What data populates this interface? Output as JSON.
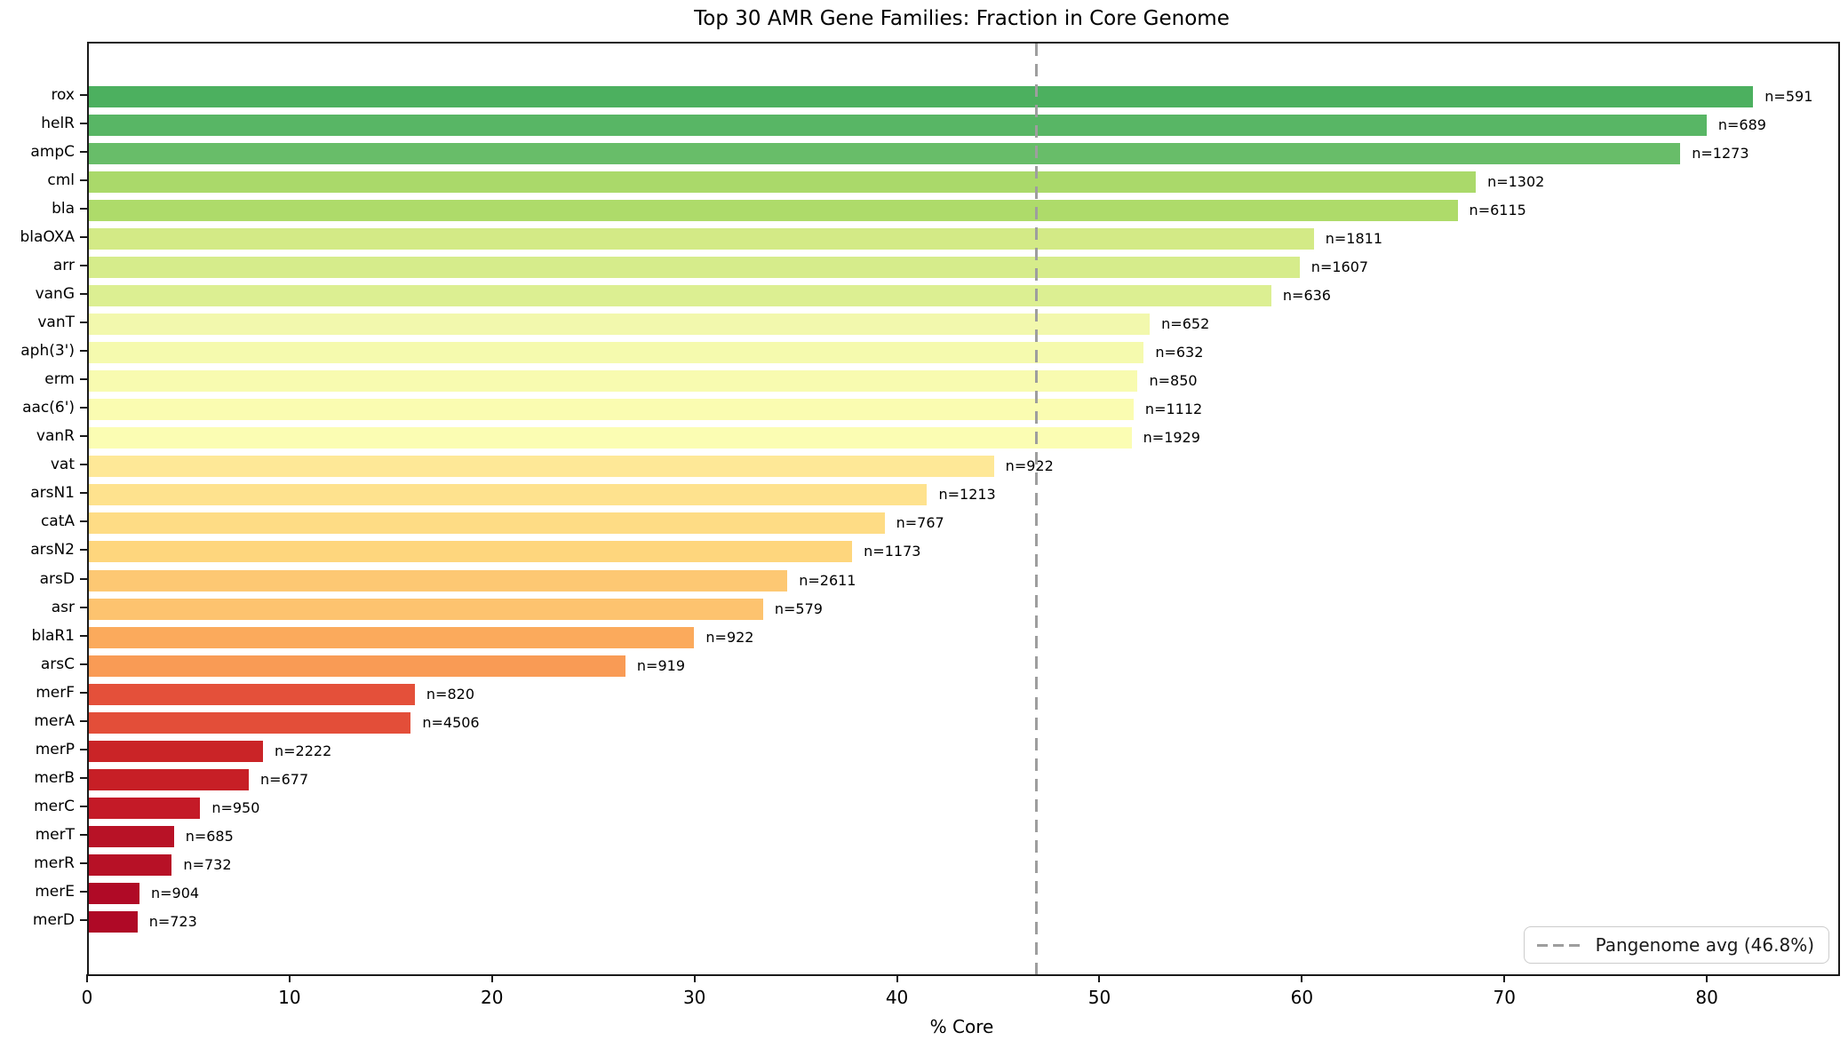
{
  "figure": {
    "title": "Top 30 AMR Gene Families: Fraction in Core Genome",
    "xlabel": "% Core"
  },
  "legend": {
    "label": "Pangenome avg (46.8%)",
    "position": "lower right",
    "line_style": "dashed",
    "line_color": "#9e9e9e"
  },
  "chart_data": {
    "type": "bar",
    "orientation": "horizontal",
    "title": "Top 30 AMR Gene Families: Fraction in Core Genome",
    "xlabel": "% Core",
    "ylabel": "",
    "categories": [
      "rox",
      "helR",
      "ampC",
      "cml",
      "bla",
      "blaOXA",
      "arr",
      "vanG",
      "vanT",
      "aph(3')",
      "erm",
      "aac(6')",
      "vanR",
      "vat",
      "arsN1",
      "catA",
      "arsN2",
      "arsD",
      "asr",
      "blaR1",
      "arsC",
      "merF",
      "merA",
      "merP",
      "merB",
      "merC",
      "merT",
      "merR",
      "merE",
      "merD"
    ],
    "values": [
      82.2,
      79.9,
      78.6,
      68.5,
      67.6,
      60.5,
      59.8,
      58.4,
      52.4,
      52.1,
      51.8,
      51.6,
      51.5,
      44.7,
      41.4,
      39.3,
      37.7,
      34.5,
      33.3,
      29.9,
      26.5,
      16.1,
      15.9,
      8.6,
      7.9,
      5.5,
      4.2,
      4.1,
      2.5,
      2.4
    ],
    "counts": [
      591,
      689,
      1273,
      1302,
      6115,
      1811,
      1607,
      636,
      652,
      632,
      850,
      1112,
      1929,
      922,
      1213,
      767,
      1173,
      2611,
      579,
      922,
      919,
      820,
      4506,
      2222,
      677,
      950,
      685,
      732,
      904,
      723
    ],
    "count_label_prefix": "n=",
    "bar_colors": [
      "#4cb05f",
      "#58b665",
      "#68bd69",
      "#aad96a",
      "#aedb6a",
      "#d3ea86",
      "#d6ec8b",
      "#dcef92",
      "#f2f8ad",
      "#f5faae",
      "#f8fbb0",
      "#fafcb1",
      "#fbfdb3",
      "#fee897",
      "#fee28e",
      "#fedc85",
      "#fed67d",
      "#fdc873",
      "#fdc36f",
      "#fbaa5c",
      "#f99b55",
      "#e4503a",
      "#e34e39",
      "#ca2427",
      "#c71f26",
      "#c41a27",
      "#b81226",
      "#b71126",
      "#b00a26",
      "#af0926"
    ],
    "colormap": "RdYlGn",
    "xlim": [
      0,
      86.4
    ],
    "xticks": [
      0,
      10,
      20,
      30,
      40,
      50,
      60,
      70,
      80
    ],
    "grid": false,
    "legend_position": "lower right",
    "reference_line": {
      "value": 46.8,
      "label": "Pangenome avg (46.8%)",
      "style": "dashed",
      "color": "#9e9e9e"
    }
  }
}
